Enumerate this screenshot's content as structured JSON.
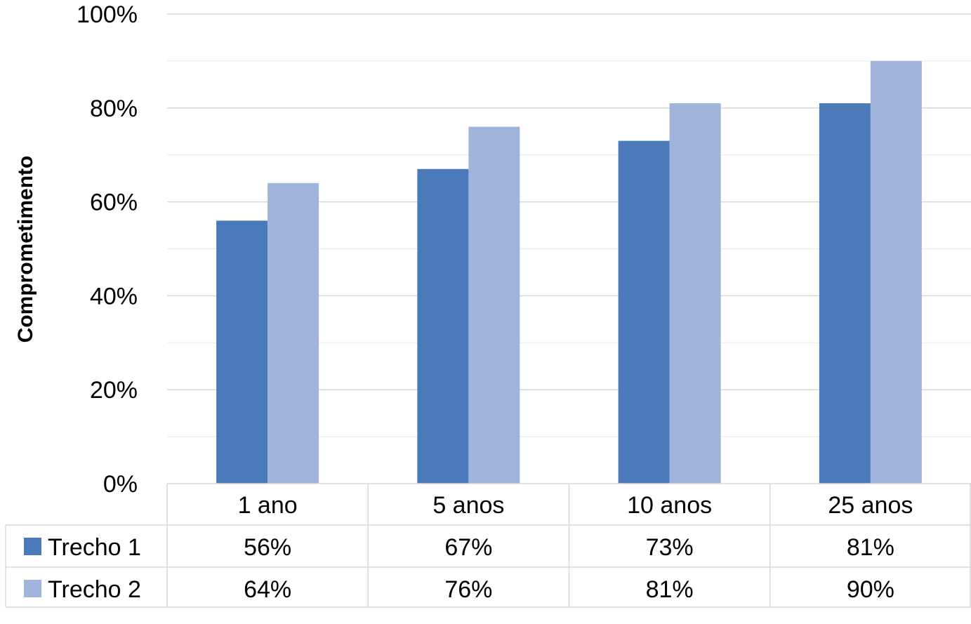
{
  "chart_data": {
    "type": "bar",
    "title": "",
    "xlabel": "",
    "ylabel": "Comprometimento",
    "ylim": [
      0,
      100
    ],
    "yticks": [
      "0%",
      "20%",
      "40%",
      "60%",
      "80%",
      "100%"
    ],
    "ytick_values": [
      0,
      20,
      40,
      60,
      80,
      100
    ],
    "grid": true,
    "legend": "data-table",
    "categories": [
      "1 ano",
      "5 anos",
      "10 anos",
      "25 anos"
    ],
    "series": [
      {
        "name": "Trecho 1",
        "values": [
          56,
          67,
          73,
          81
        ],
        "labels": [
          "56%",
          "67%",
          "73%",
          "81%"
        ],
        "color": "#4a7ab9"
      },
      {
        "name": "Trecho 2",
        "values": [
          64,
          76,
          81,
          90
        ],
        "labels": [
          "64%",
          "76%",
          "81%",
          "90%"
        ],
        "color": "#a0b4db"
      }
    ]
  }
}
